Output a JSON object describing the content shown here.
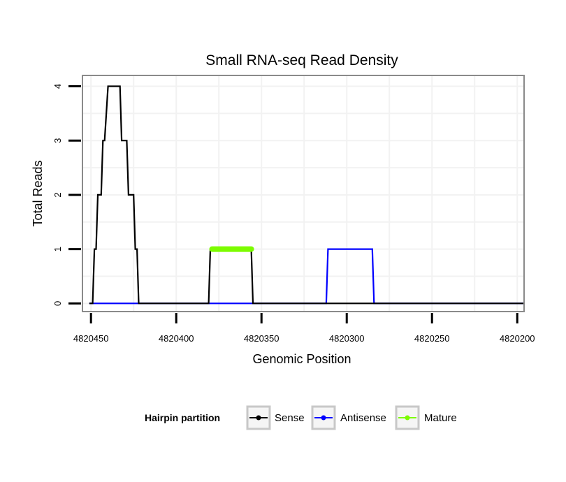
{
  "chart_data": {
    "type": "line",
    "title": "Small RNA-seq Read Density",
    "xlabel": "Genomic Position",
    "ylabel": "Total Reads",
    "xlim": [
      4820455,
      4820196
    ],
    "ylim": [
      -0.15,
      4.2
    ],
    "x_reversed": true,
    "grid": true,
    "x_ticks": [
      4820450,
      4820400,
      4820350,
      4820300,
      4820250,
      4820200
    ],
    "x_tick_labels": [
      "4820450",
      "4820400",
      "4820350",
      "4820300",
      "4820250",
      "4820200"
    ],
    "y_ticks": [
      0,
      1,
      2,
      3,
      4
    ],
    "y_tick_labels": [
      "0",
      "1",
      "2",
      "3",
      "4"
    ],
    "legend": {
      "title": "Hairpin partition",
      "position": "bottom",
      "entries": [
        {
          "name": "Sense",
          "color": "#000000"
        },
        {
          "name": "Antisense",
          "color": "#0000ff"
        },
        {
          "name": "Mature",
          "color": "#7cfc00"
        }
      ]
    },
    "series": [
      {
        "name": "Antisense",
        "color": "#0000ff",
        "x": [
          4820451,
          4820420,
          4820312,
          4820311,
          4820285,
          4820284,
          4820196
        ],
        "y": [
          0,
          0,
          0,
          1,
          1,
          0,
          0
        ]
      },
      {
        "name": "Sense",
        "color": "#000000",
        "x": [
          4820451,
          4820449,
          4820448,
          4820447,
          4820446,
          4820444,
          4820443,
          4820442,
          4820440,
          4820439,
          4820438,
          4820436,
          4820435,
          4820433,
          4820432,
          4820431,
          4820429,
          4820428,
          4820427,
          4820425,
          4820424,
          4820423,
          4820422,
          4820420,
          4820419,
          4820381,
          4820380,
          4820356,
          4820355,
          4820196
        ],
        "y": [
          0,
          0,
          1,
          1,
          2,
          2,
          3,
          3,
          4,
          4,
          4,
          4,
          4,
          4,
          3,
          3,
          3,
          2,
          2,
          2,
          1,
          1,
          0,
          0,
          0,
          0,
          1,
          1,
          0,
          0
        ]
      },
      {
        "name": "Mature",
        "color": "#7cfc00",
        "x": [
          4820379,
          4820356
        ],
        "y": [
          1,
          1
        ]
      }
    ]
  }
}
